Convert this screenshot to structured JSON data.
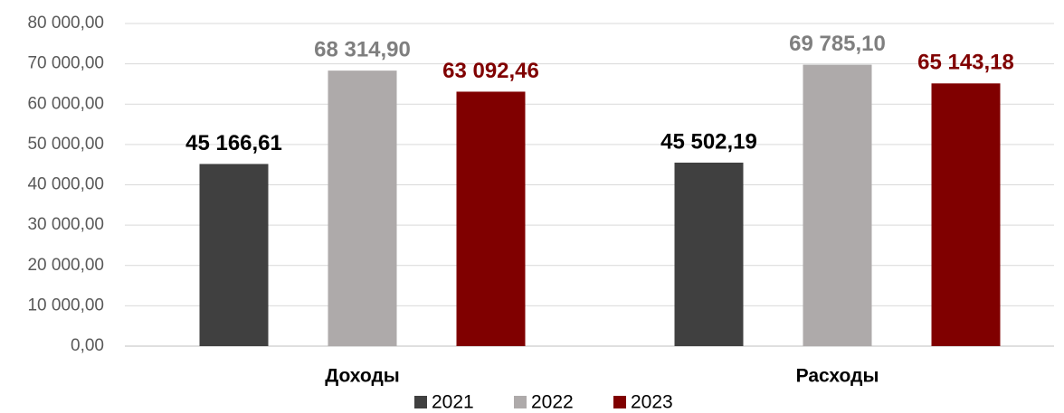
{
  "chart_data": {
    "type": "bar",
    "categories": [
      "Доходы",
      "Расходы"
    ],
    "series": [
      {
        "name": "2021",
        "color": "#404040",
        "label_color": "#000000",
        "values": [
          45166.61,
          45502.19
        ],
        "value_labels": [
          "45 166,61",
          "45 502,19"
        ]
      },
      {
        "name": "2022",
        "color": "#aeaaaa",
        "label_color": "#7f7f7f",
        "values": [
          68314.9,
          69785.1
        ],
        "value_labels": [
          "68 314,90",
          "69 785,10"
        ]
      },
      {
        "name": "2023",
        "color": "#800000",
        "label_color": "#800000",
        "values": [
          63092.46,
          65143.18
        ],
        "value_labels": [
          "63 092,46",
          "65 143,18"
        ]
      }
    ],
    "ylim": [
      0,
      80000
    ],
    "yticks": [
      {
        "value": 0,
        "label": "0,00"
      },
      {
        "value": 10000,
        "label": "10 000,00"
      },
      {
        "value": 20000,
        "label": "20 000,00"
      },
      {
        "value": 30000,
        "label": "30 000,00"
      },
      {
        "value": 40000,
        "label": "40 000,00"
      },
      {
        "value": 50000,
        "label": "50 000,00"
      },
      {
        "value": 60000,
        "label": "60 000,00"
      },
      {
        "value": 70000,
        "label": "70 000,00"
      },
      {
        "value": 80000,
        "label": "80 000,00"
      }
    ],
    "grid": true,
    "legend": "bottom"
  }
}
